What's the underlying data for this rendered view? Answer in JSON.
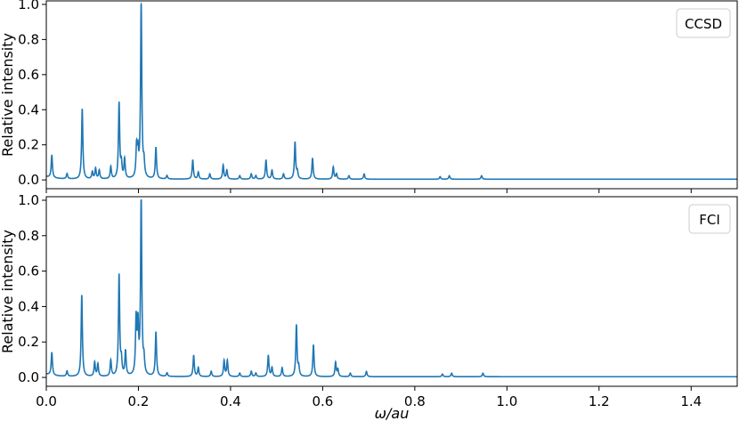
{
  "chart_data": [
    {
      "type": "line",
      "legend": "CCSD",
      "legend_position": "top-right",
      "ylabel": "Relative intensity",
      "xlabel": "",
      "xlim": [
        0.0,
        1.5
      ],
      "ylim": [
        -0.05,
        1.02
      ],
      "yticks": [
        "0.0",
        "0.2",
        "0.4",
        "0.6",
        "0.8",
        "1.0"
      ],
      "grid": false,
      "color": "#1f77b4",
      "baseline": 0.01,
      "peaks": [
        {
          "x": 0.012,
          "y": 0.13
        },
        {
          "x": 0.045,
          "y": 0.03
        },
        {
          "x": 0.078,
          "y": 0.4
        },
        {
          "x": 0.1,
          "y": 0.04
        },
        {
          "x": 0.107,
          "y": 0.06
        },
        {
          "x": 0.115,
          "y": 0.05
        },
        {
          "x": 0.14,
          "y": 0.07
        },
        {
          "x": 0.158,
          "y": 0.43
        },
        {
          "x": 0.163,
          "y": 0.08
        },
        {
          "x": 0.17,
          "y": 0.11
        },
        {
          "x": 0.196,
          "y": 0.17
        },
        {
          "x": 0.199,
          "y": 0.13
        },
        {
          "x": 0.206,
          "y": 1.0
        },
        {
          "x": 0.212,
          "y": 0.08
        },
        {
          "x": 0.238,
          "y": 0.18
        },
        {
          "x": 0.262,
          "y": 0.02
        },
        {
          "x": 0.318,
          "y": 0.11
        },
        {
          "x": 0.33,
          "y": 0.04
        },
        {
          "x": 0.355,
          "y": 0.03
        },
        {
          "x": 0.384,
          "y": 0.08
        },
        {
          "x": 0.392,
          "y": 0.05
        },
        {
          "x": 0.42,
          "y": 0.02
        },
        {
          "x": 0.445,
          "y": 0.03
        },
        {
          "x": 0.455,
          "y": 0.02
        },
        {
          "x": 0.477,
          "y": 0.11
        },
        {
          "x": 0.49,
          "y": 0.05
        },
        {
          "x": 0.515,
          "y": 0.03
        },
        {
          "x": 0.54,
          "y": 0.21
        },
        {
          "x": 0.545,
          "y": 0.04
        },
        {
          "x": 0.578,
          "y": 0.12
        },
        {
          "x": 0.623,
          "y": 0.07
        },
        {
          "x": 0.63,
          "y": 0.03
        },
        {
          "x": 0.657,
          "y": 0.02
        },
        {
          "x": 0.69,
          "y": 0.03
        },
        {
          "x": 0.855,
          "y": 0.015
        },
        {
          "x": 0.875,
          "y": 0.02
        },
        {
          "x": 0.945,
          "y": 0.02
        }
      ]
    },
    {
      "type": "line",
      "legend": "FCI",
      "legend_position": "top-right",
      "ylabel": "Relative intensity",
      "xlabel": "ω/au",
      "xlim": [
        0.0,
        1.5
      ],
      "ylim": [
        -0.05,
        1.02
      ],
      "xticks": [
        "0.0",
        "0.2",
        "0.4",
        "0.6",
        "0.8",
        "1.0",
        "1.2",
        "1.4"
      ],
      "yticks": [
        "0.0",
        "0.2",
        "0.4",
        "0.6",
        "0.8",
        "1.0"
      ],
      "grid": false,
      "color": "#1f77b4",
      "baseline": 0.01,
      "peaks": [
        {
          "x": 0.012,
          "y": 0.13
        },
        {
          "x": 0.045,
          "y": 0.03
        },
        {
          "x": 0.077,
          "y": 0.46
        },
        {
          "x": 0.105,
          "y": 0.08
        },
        {
          "x": 0.112,
          "y": 0.07
        },
        {
          "x": 0.14,
          "y": 0.09
        },
        {
          "x": 0.158,
          "y": 0.57
        },
        {
          "x": 0.163,
          "y": 0.08
        },
        {
          "x": 0.172,
          "y": 0.14
        },
        {
          "x": 0.195,
          "y": 0.31
        },
        {
          "x": 0.199,
          "y": 0.27
        },
        {
          "x": 0.206,
          "y": 1.0
        },
        {
          "x": 0.212,
          "y": 0.08
        },
        {
          "x": 0.238,
          "y": 0.25
        },
        {
          "x": 0.262,
          "y": 0.02
        },
        {
          "x": 0.32,
          "y": 0.12
        },
        {
          "x": 0.33,
          "y": 0.05
        },
        {
          "x": 0.358,
          "y": 0.03
        },
        {
          "x": 0.386,
          "y": 0.09
        },
        {
          "x": 0.393,
          "y": 0.09
        },
        {
          "x": 0.42,
          "y": 0.02
        },
        {
          "x": 0.445,
          "y": 0.03
        },
        {
          "x": 0.455,
          "y": 0.02
        },
        {
          "x": 0.482,
          "y": 0.12
        },
        {
          "x": 0.49,
          "y": 0.05
        },
        {
          "x": 0.512,
          "y": 0.05
        },
        {
          "x": 0.543,
          "y": 0.29
        },
        {
          "x": 0.548,
          "y": 0.05
        },
        {
          "x": 0.58,
          "y": 0.18
        },
        {
          "x": 0.628,
          "y": 0.08
        },
        {
          "x": 0.633,
          "y": 0.04
        },
        {
          "x": 0.66,
          "y": 0.02
        },
        {
          "x": 0.695,
          "y": 0.03
        },
        {
          "x": 0.86,
          "y": 0.015
        },
        {
          "x": 0.88,
          "y": 0.02
        },
        {
          "x": 0.948,
          "y": 0.02
        }
      ]
    }
  ]
}
